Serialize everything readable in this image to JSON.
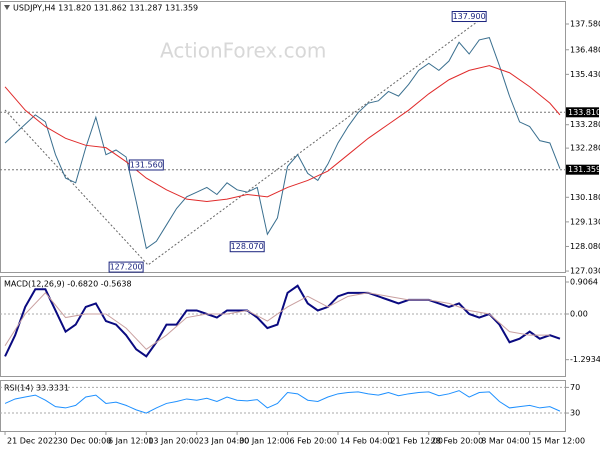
{
  "header": "USDJPY,H4  131.820 131.862 131.287 131.359",
  "watermark": "ActionForex.com",
  "chart_data": [
    {
      "type": "line",
      "ylim": [
        126.99,
        138.52
      ],
      "yticks": [
        {
          "value": 137.58,
          "label": "137.580"
        },
        {
          "value": 136.48,
          "label": "136.480"
        },
        {
          "value": 135.43,
          "label": "135.430"
        },
        {
          "value": 133.28,
          "label": "133.280"
        },
        {
          "value": 132.28,
          "label": "132.280"
        },
        {
          "value": 130.18,
          "label": "130.180"
        },
        {
          "value": 129.13,
          "label": "129.130"
        },
        {
          "value": 128.08,
          "label": "128.080"
        },
        {
          "value": 127.03,
          "label": "127.030"
        }
      ],
      "xlim": [
        -0.5,
        55.5
      ],
      "levels": [
        {
          "value": 133.81,
          "label": "133.810"
        },
        {
          "value": 131.359,
          "label": "131.359"
        }
      ],
      "annotations": [
        {
          "x": 46,
          "value": 137.9,
          "label": "137.900"
        },
        {
          "x": 14,
          "value": 131.56,
          "label": "131.560"
        },
        {
          "x": 24,
          "value": 128.07,
          "label": "128.070"
        },
        {
          "x": 12,
          "value": 127.2,
          "label": "127.200"
        }
      ],
      "series": [
        {
          "color": "#3a6f8f",
          "values": [
            132.5,
            132.9,
            133.3,
            133.7,
            133.4,
            132.0,
            131.0,
            130.8,
            132.3,
            133.6,
            132.0,
            132.2,
            131.9,
            130.0,
            128.0,
            128.3,
            129.0,
            129.7,
            130.2,
            130.4,
            130.6,
            130.3,
            130.8,
            130.5,
            130.4,
            130.6,
            128.6,
            129.3,
            131.5,
            132.0,
            131.2,
            130.9,
            131.6,
            132.5,
            133.2,
            133.8,
            134.2,
            134.3,
            134.7,
            134.5,
            135.0,
            135.6,
            135.9,
            135.6,
            136.0,
            136.8,
            136.3,
            136.9,
            137.0,
            135.8,
            134.5,
            133.4,
            133.2,
            132.6,
            132.5,
            131.4
          ]
        },
        {
          "color": "#e02b2b",
          "x": [
            0,
            2,
            4,
            6,
            8,
            10,
            12,
            14,
            16,
            18,
            20,
            22,
            24,
            26,
            28,
            30,
            32,
            34,
            36,
            38,
            40,
            42,
            44,
            46,
            48,
            50,
            52,
            54,
            55
          ],
          "values": [
            134.9,
            133.9,
            133.2,
            132.7,
            132.4,
            132.3,
            131.7,
            131.0,
            130.5,
            130.1,
            130.0,
            130.1,
            130.3,
            130.2,
            130.6,
            130.9,
            131.3,
            132.0,
            132.7,
            133.3,
            133.9,
            134.6,
            135.2,
            135.6,
            135.8,
            135.5,
            134.9,
            134.2,
            133.7
          ]
        }
      ]
    },
    {
      "type": "line",
      "label": "MACD(12,26,9) -0.6820 -0.5638",
      "ylim": [
        -1.756,
        1.048
      ],
      "yticks": [
        0.9064,
        {
          "value": 0,
          "label": "0.00"
        },
        -1.2934
      ],
      "xlim": [
        -0.5,
        55.5
      ],
      "series": [
        {
          "color": "#0a0a80",
          "values": [
            -1.2,
            -0.6,
            0.2,
            0.7,
            0.7,
            0.1,
            -0.5,
            -0.3,
            0.2,
            0.3,
            -0.2,
            -0.3,
            -0.6,
            -1.0,
            -1.2,
            -0.8,
            -0.3,
            -0.3,
            0.1,
            0.1,
            0.0,
            -0.1,
            0.1,
            0.1,
            0.1,
            -0.1,
            -0.4,
            -0.3,
            0.6,
            0.8,
            0.3,
            0.1,
            0.2,
            0.5,
            0.6,
            0.6,
            0.6,
            0.5,
            0.4,
            0.3,
            0.4,
            0.4,
            0.4,
            0.3,
            0.2,
            0.3,
            0.0,
            -0.1,
            0.0,
            -0.3,
            -0.8,
            -0.7,
            -0.5,
            -0.7,
            -0.6,
            -0.7
          ]
        },
        {
          "color": "#c9a0a0",
          "x": [
            0,
            2,
            4,
            6,
            8,
            10,
            12,
            14,
            16,
            18,
            20,
            22,
            24,
            26,
            28,
            30,
            32,
            34,
            36,
            38,
            40,
            42,
            44,
            46,
            48,
            50,
            52,
            54
          ],
          "values": [
            -0.9,
            0.0,
            0.6,
            -0.1,
            0.0,
            0.0,
            -0.4,
            -1.0,
            -0.6,
            -0.1,
            0.0,
            0.0,
            0.1,
            -0.2,
            0.2,
            0.5,
            0.2,
            0.5,
            0.6,
            0.5,
            0.4,
            0.4,
            0.3,
            0.1,
            0.0,
            -0.5,
            -0.6,
            -0.6
          ]
        }
      ]
    },
    {
      "type": "line",
      "label": "RSI(14) 33.3331",
      "ylim": [
        2,
        80
      ],
      "yticks": [
        70,
        30
      ],
      "xlim": [
        -0.5,
        55.5
      ],
      "xticks": [
        {
          "value": 0,
          "label": "21 Dec 2022"
        },
        {
          "value": 5,
          "label": "30 Dec 00:00"
        },
        {
          "value": 10,
          "label": "6 Jan 12:00"
        },
        {
          "value": 14,
          "label": "13 Jan 20:00"
        },
        {
          "value": 19,
          "label": "23 Jan 04:00"
        },
        {
          "value": 23,
          "label": "30 Jan 12:00"
        },
        {
          "value": 28,
          "label": "6 Feb 20:00"
        },
        {
          "value": 33,
          "label": "14 Feb 04:00"
        },
        {
          "value": 38,
          "label": "21 Feb 12:00"
        },
        {
          "value": 42,
          "label": "28 Feb 20:00"
        },
        {
          "value": 47,
          "label": "8 Mar 04:00"
        },
        {
          "value": 52,
          "label": "15 Mar 12:00"
        }
      ],
      "series": [
        {
          "color": "#1e90ff",
          "values": [
            45,
            52,
            55,
            58,
            50,
            40,
            38,
            42,
            55,
            58,
            45,
            47,
            42,
            35,
            30,
            38,
            45,
            48,
            52,
            50,
            53,
            48,
            55,
            50,
            49,
            51,
            38,
            45,
            62,
            60,
            50,
            48,
            55,
            60,
            62,
            63,
            60,
            58,
            62,
            57,
            60,
            62,
            63,
            57,
            60,
            65,
            55,
            62,
            63,
            48,
            38,
            40,
            42,
            38,
            40,
            33
          ]
        }
      ]
    }
  ]
}
